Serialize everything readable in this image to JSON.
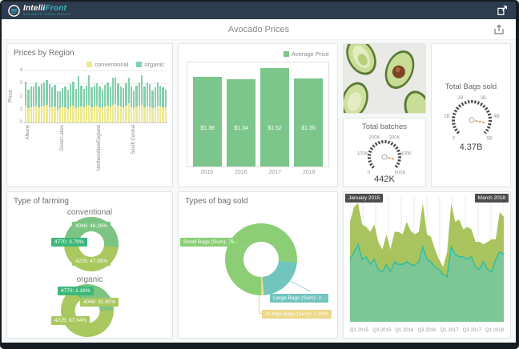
{
  "topbar": {
    "logo_intelli": "Intelli",
    "logo_front": "Front",
    "logo_sub": "BUSINESS INTELLIGENCE"
  },
  "header": {
    "title": "Avocado Prices"
  },
  "colors": {
    "conventional": "#ede98e",
    "organic": "#85cfad",
    "avg_bar": "#7cc68c",
    "farm_green": "#7cc482",
    "farm_olive": "#a9c85f",
    "farm_emerald": "#3db87b",
    "bag_green": "#8bce75",
    "bag_teal": "#72c4bf",
    "bag_yellow": "#ecd88a",
    "area_olive": "#a9c45e",
    "area_green": "#7cc795",
    "area_teal": "#27bfa5"
  },
  "panels": {
    "prices_by_region": {
      "title": "Prices by Region",
      "legend": [
        "conventional",
        "organic"
      ],
      "chart_data": {
        "type": "bar",
        "stacked": true,
        "ylabel": "Price",
        "ylim": [
          0,
          4
        ],
        "ytick_labels": [
          "4",
          "3",
          "2",
          "1",
          "0"
        ],
        "x_axis_labels": [
          {
            "label": "Albany",
            "index": 0
          },
          {
            "label": "Great Lakes",
            "index": 13
          },
          {
            "label": "NorthernNewEngland",
            "index": 27
          },
          {
            "label": "South Central",
            "index": 40
          }
        ],
        "series": [
          {
            "name": "conventional",
            "values": [
              1.3,
              1.1,
              1.2,
              1.25,
              1.3,
              1.2,
              1.25,
              1.3,
              1.35,
              1.2,
              1.15,
              1.25,
              1.0,
              1.1,
              1.15,
              1.2,
              1.05,
              1.25,
              1.3,
              1.1,
              1.2,
              1.25,
              1.15,
              1.3,
              1.35,
              1.2,
              1.25,
              1.3,
              1.2,
              1.1,
              1.25,
              1.3,
              1.2,
              1.35,
              1.4,
              1.3,
              1.25,
              1.2,
              1.3,
              1.45,
              1.2,
              1.1,
              1.25,
              1.3,
              1.35,
              1.2,
              1.3,
              1.25,
              1.1,
              1.2,
              1.3,
              1.25,
              1.2,
              1.15
            ]
          },
          {
            "name": "organic",
            "values": [
              1.85,
              1.4,
              1.6,
              1.55,
              1.75,
              1.6,
              1.7,
              1.8,
              1.9,
              1.75,
              1.55,
              1.65,
              1.4,
              1.3,
              1.5,
              1.6,
              1.45,
              1.7,
              1.85,
              1.5,
              2.35,
              1.6,
              1.45,
              1.55,
              2.3,
              1.5,
              1.6,
              1.7,
              1.55,
              1.4,
              1.65,
              1.75,
              1.6,
              2.1,
              2.05,
              1.7,
              1.55,
              1.45,
              1.7,
              2.0,
              1.55,
              1.35,
              1.6,
              1.75,
              2.3,
              1.6,
              1.8,
              1.7,
              1.35,
              1.5,
              1.75,
              1.6,
              1.5,
              1.4
            ]
          }
        ]
      }
    },
    "average_price": {
      "legend": "Average Price",
      "chart_data": {
        "type": "bar",
        "categories": [
          "2015",
          "2016",
          "2017",
          "2018"
        ],
        "values": [
          1.38,
          1.34,
          1.52,
          1.35
        ],
        "labels": [
          "$1.38",
          "$1.34",
          "$1.52",
          "$1.35"
        ],
        "ylim": [
          0,
          1.6
        ]
      }
    },
    "total_batches": {
      "title": "Total batches",
      "chart_data": {
        "type": "gauge",
        "min": 0,
        "max": 500000,
        "value": 442000,
        "value_label": "442K",
        "tick_labels": [
          "0",
          "100K",
          "200K",
          "300K",
          "400K",
          "500K"
        ]
      }
    },
    "total_bags": {
      "title": "Total Bags sold",
      "chart_data": {
        "type": "gauge",
        "min": 0,
        "max": 5,
        "value": 4.37,
        "value_label": "4.37B",
        "tick_labels": [
          "0",
          "1B",
          "2B",
          "3B",
          "4B",
          "5B"
        ]
      }
    },
    "type_of_farming": {
      "title": "Type of farming",
      "charts": [
        {
          "heading": "conventional",
          "type": "pie",
          "start_angle": 270,
          "slices": [
            {
              "label": "4770: 3.79%",
              "pct": 3.79,
              "color_key": "farm_emerald"
            },
            {
              "label": "4046: 48.26%",
              "pct": 48.26,
              "color_key": "farm_green"
            },
            {
              "label": "4225: 47.95%",
              "pct": 47.95,
              "color_key": "farm_olive"
            }
          ]
        },
        {
          "heading": "organic",
          "type": "pie",
          "start_angle": 330,
          "slices": [
            {
              "label": "4770: 1.16%",
              "pct": 1.16,
              "color_key": "farm_emerald"
            },
            {
              "label": "4046: 31.80%",
              "pct": 31.8,
              "color_key": "farm_green"
            },
            {
              "label": "4225: 67.04%",
              "pct": 67.04,
              "color_key": "farm_olive"
            }
          ]
        }
      ]
    },
    "types_of_bag": {
      "title": "Types of bag sold",
      "chart_data": {
        "type": "pie",
        "start_angle": 180,
        "slices": [
          {
            "label": "Small Bags (Sum): 76...",
            "pct": 76.5,
            "color_key": "bag_green"
          },
          {
            "label": "Large Bags (Sum): 2...",
            "pct": 22.2,
            "color_key": "bag_teal"
          },
          {
            "label": "XLarge Bags (Sum): 1.30%",
            "pct": 1.3,
            "color_key": "bag_yellow"
          }
        ]
      }
    },
    "volume_over_time": {
      "badge_start": "January 2015",
      "badge_end": "March 2018",
      "chart_data": {
        "type": "area",
        "stacked": true,
        "gridline_count": 13,
        "x_tick_labels": [
          "Q1 2015",
          "Q3 2015",
          "Q1 2016",
          "Q3 2016",
          "Q1 2017",
          "Q3 2017",
          "Q1 2018"
        ],
        "series": [
          {
            "name": "lower",
            "values": [
              50,
              56,
              62,
              50,
              52,
              46,
              50,
              42,
              40,
              46,
              40,
              48,
              46,
              46,
              48,
              46,
              45,
              48,
              60,
              50,
              48,
              44,
              42,
              38,
              36,
              60,
              54,
              52,
              52,
              50,
              52,
              44,
              42,
              48,
              42,
              40,
              50,
              56,
              54
            ]
          },
          {
            "name": "upper",
            "values": [
              30,
              36,
              33,
              28,
              24,
              26,
              28,
              22,
              18,
              24,
              18,
              24,
              26,
              24,
              32,
              27,
              25,
              24,
              35,
              20,
              20,
              14,
              8,
              6,
              20,
              35,
              26,
              30,
              22,
              26,
              22,
              20,
              22,
              14,
              22,
              26,
              16,
              32,
              30
            ]
          }
        ]
      }
    }
  }
}
